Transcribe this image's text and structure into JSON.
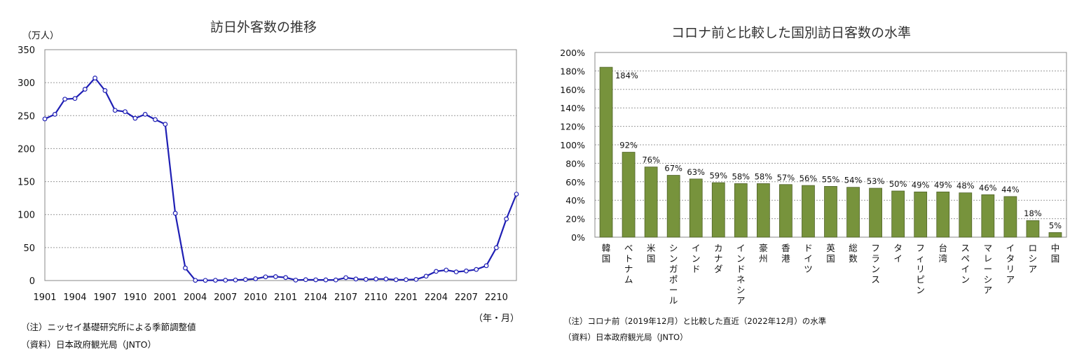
{
  "left": {
    "title": "訪日外客数の推移",
    "y_unit": "（万人）",
    "x_unit": "（年・月）",
    "notes": [
      "（注）ニッセイ基礎研究所による季節調整値",
      "（資料）日本政府観光局（JNTO）"
    ]
  },
  "right": {
    "title": "コロナ前と比較した国別訪日客数の水準",
    "notes": [
      "（注）コロナ前（2019年12月）と比較した直近（2022年12月）の水準",
      "（資料）日本政府観光局（JNTO）"
    ]
  },
  "chart_data": [
    {
      "type": "line",
      "title": "訪日外客数の推移",
      "ylabel": "（万人）",
      "xlabel": "（年・月）",
      "ylim": [
        0,
        350
      ],
      "yticks": [
        0,
        50,
        100,
        150,
        200,
        250,
        300,
        350
      ],
      "xtick_labels": [
        "1901",
        "1904",
        "1907",
        "1910",
        "2001",
        "2004",
        "2007",
        "2010",
        "2101",
        "2104",
        "2107",
        "2110",
        "2201",
        "2204",
        "2207",
        "2210"
      ],
      "x": [
        "1901",
        "1902",
        "1903",
        "1904",
        "1905",
        "1906",
        "1907",
        "1908",
        "1909",
        "1910",
        "1911",
        "1912",
        "2001",
        "2002",
        "2003",
        "2004",
        "2005",
        "2006",
        "2007",
        "2008",
        "2009",
        "2010",
        "2011",
        "2012",
        "2101",
        "2102",
        "2103",
        "2104",
        "2105",
        "2106",
        "2107",
        "2108",
        "2109",
        "2110",
        "2111",
        "2112",
        "2201",
        "2202",
        "2203",
        "2204",
        "2205",
        "2206",
        "2207",
        "2208",
        "2209",
        "2210",
        "2211",
        "2212"
      ],
      "series": [
        {
          "values": [
            245,
            252,
            275,
            276,
            290,
            307,
            288,
            258,
            256,
            246,
            252,
            244,
            237,
            102,
            19,
            0.3,
            0.3,
            0.4,
            0.5,
            0.8,
            1.5,
            2.7,
            5.6,
            5.9,
            4.6,
            0.7,
            1.3,
            1.1,
            1.0,
            0.9,
            4.4,
            2.3,
            1.8,
            2.3,
            2.3,
            1.2,
            1.3,
            1.7,
            6.6,
            13.9,
            15.9,
            13.1,
            14.5,
            16.8,
            22.5,
            49.8,
            93.4,
            131
          ]
        }
      ],
      "color": "#1f1fb4",
      "grid": "horizontal-dashed"
    },
    {
      "type": "bar",
      "title": "コロナ前と比較した国別訪日客数の水準",
      "ylim": [
        0,
        200
      ],
      "yticks": [
        "0%",
        "20%",
        "40%",
        "60%",
        "80%",
        "100%",
        "120%",
        "140%",
        "160%",
        "180%",
        "200%"
      ],
      "categories": [
        "韓国",
        "ベトナム",
        "米国",
        "シンガポール",
        "インド",
        "カナダ",
        "インドネシア",
        "豪州",
        "香港",
        "ドイツ",
        "英国",
        "総数",
        "フランス",
        "タイ",
        "フィリピン",
        "台湾",
        "スペイン",
        "マレーシア",
        "イタリア",
        "ロシア",
        "中国"
      ],
      "values": [
        184,
        92,
        76,
        67,
        63,
        59,
        58,
        58,
        57,
        56,
        55,
        54,
        53,
        50,
        49,
        49,
        48,
        46,
        44,
        18,
        5
      ],
      "data_labels": [
        "184%",
        "92%",
        "76%",
        "67%",
        "63%",
        "59%",
        "58%",
        "58%",
        "57%",
        "56%",
        "55%",
        "54%",
        "53%",
        "50%",
        "49%",
        "49%",
        "48%",
        "46%",
        "44%",
        "18%",
        "5%"
      ],
      "color": "#77933c",
      "grid": "horizontal-dashed"
    }
  ]
}
